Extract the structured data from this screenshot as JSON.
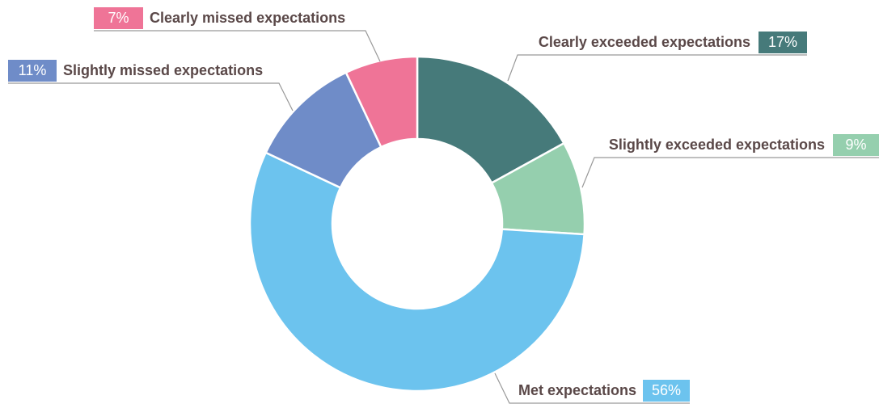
{
  "chart_data": {
    "type": "donut",
    "categories": [
      "Clearly exceeded expectations",
      "Slightly exceeded expectations",
      "Met expectations",
      "Slightly missed expectations",
      "Clearly missed expectations"
    ],
    "values": [
      17,
      9,
      56,
      11,
      7
    ],
    "value_labels": [
      "17%",
      "9%",
      "56%",
      "11%",
      "7%"
    ],
    "colors": [
      "#467a7a",
      "#95cfae",
      "#6cc3ee",
      "#6f8cc8",
      "#ef7497"
    ]
  }
}
